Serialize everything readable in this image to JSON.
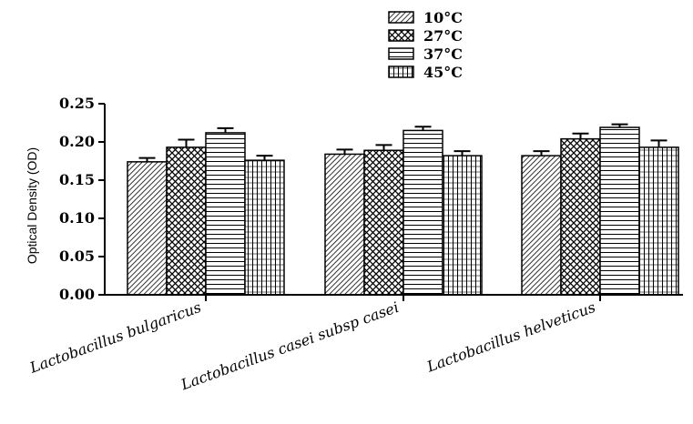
{
  "chart_data": {
    "type": "bar",
    "title": "",
    "xlabel": "",
    "ylabel": "Optical Density (OD)",
    "ylim": [
      0,
      0.25
    ],
    "yticks": [
      "0.00",
      "0.05",
      "0.10",
      "0.15",
      "0.20",
      "0.25"
    ],
    "categories": [
      "Lactobacillus bulgaricus",
      "Lactobacillus casei subsp casei",
      "Lactobacillus helveticus"
    ],
    "legend_position": "top-center",
    "grid": false,
    "error_bars": true,
    "series": [
      {
        "name": "10°C",
        "pattern": "diagonal-hatch",
        "values": [
          0.174,
          0.184,
          0.182
        ],
        "errors": [
          0.005,
          0.006,
          0.006
        ]
      },
      {
        "name": "27°C",
        "pattern": "cross-hatch",
        "values": [
          0.193,
          0.189,
          0.204
        ],
        "errors": [
          0.01,
          0.007,
          0.007
        ]
      },
      {
        "name": "37°C",
        "pattern": "horizontal-lines",
        "values": [
          0.212,
          0.215,
          0.219
        ],
        "errors": [
          0.006,
          0.005,
          0.004
        ]
      },
      {
        "name": "45°C",
        "pattern": "grid-lines",
        "values": [
          0.176,
          0.182,
          0.193
        ],
        "errors": [
          0.006,
          0.006,
          0.009
        ]
      }
    ]
  }
}
